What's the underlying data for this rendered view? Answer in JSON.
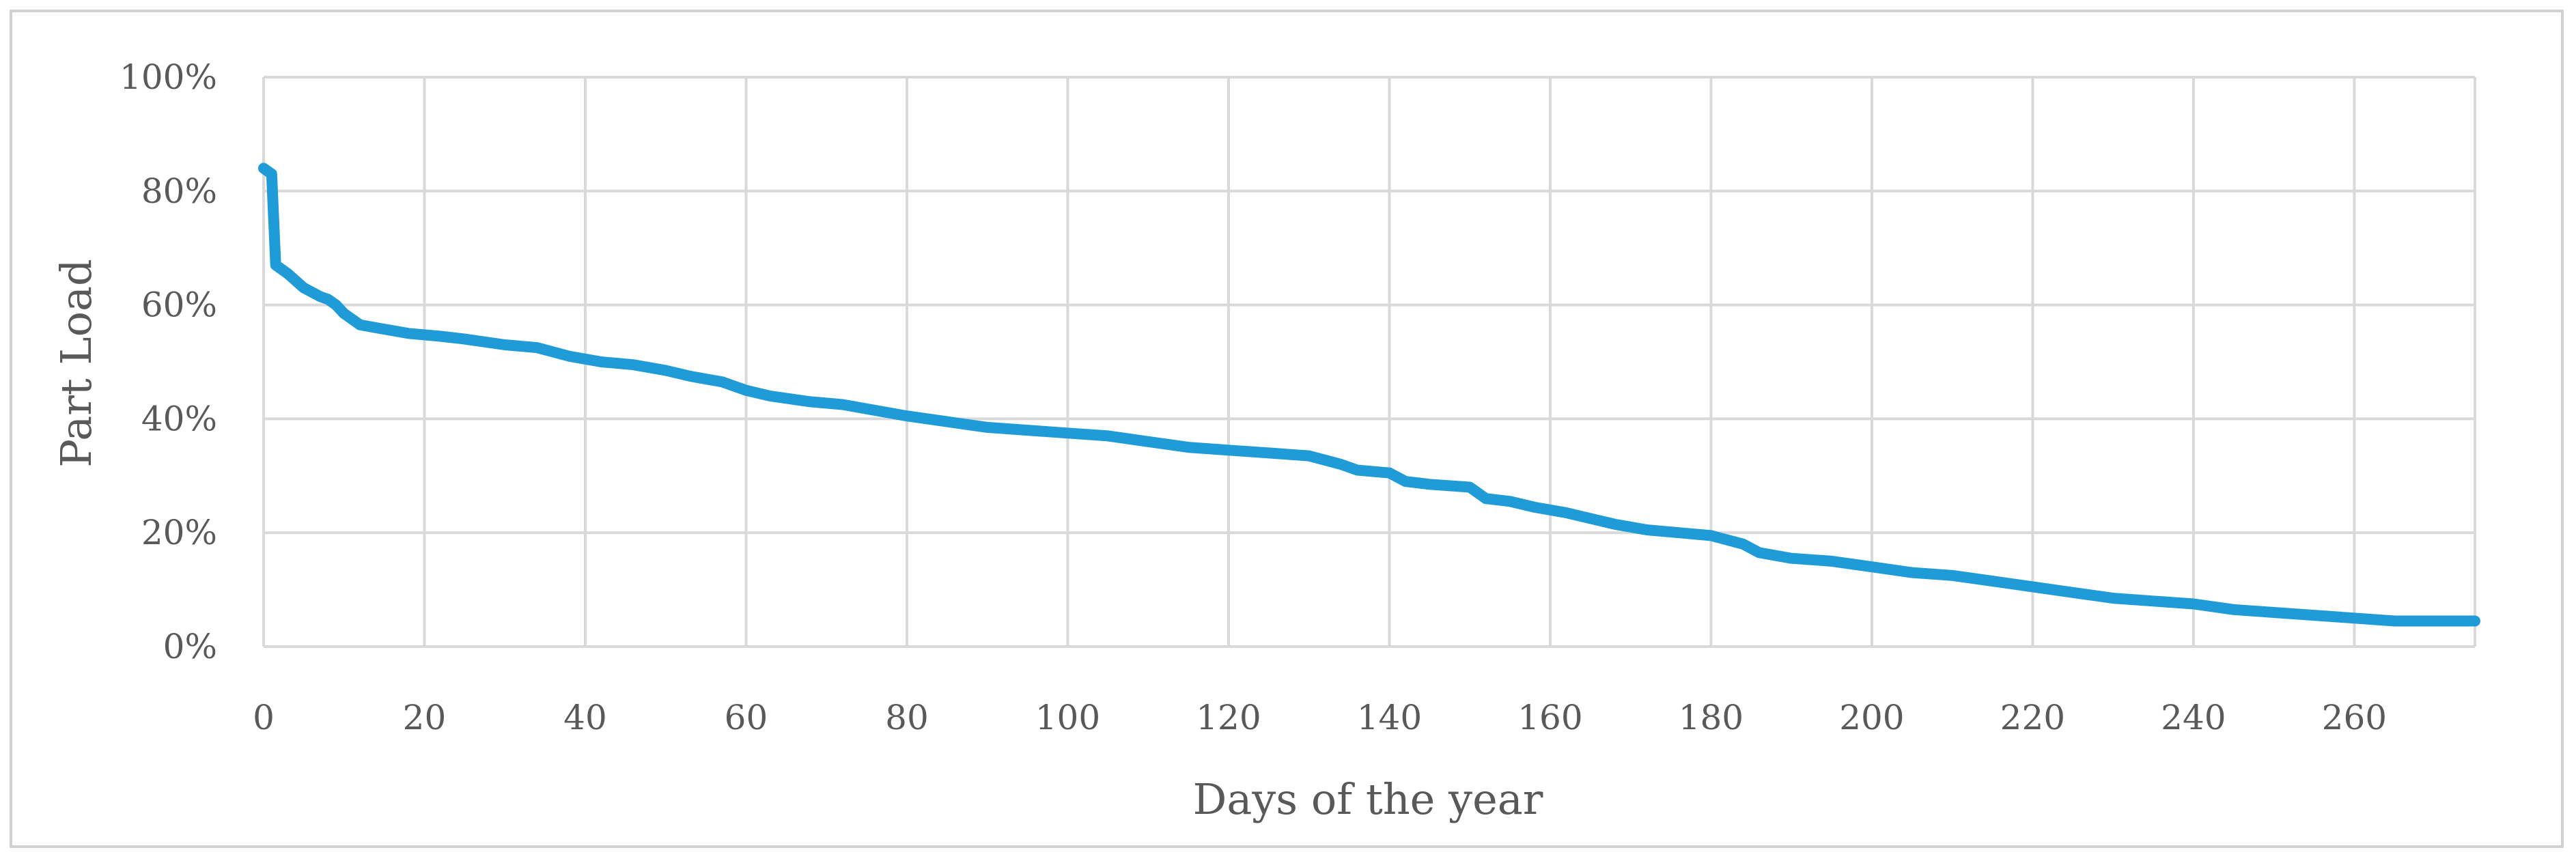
{
  "chart_data": {
    "type": "line",
    "title": "",
    "xlabel": "Days of the year",
    "ylabel": "Part Load",
    "xlim": [
      0,
      275
    ],
    "ylim": [
      0,
      100
    ],
    "x_ticks": [
      0,
      20,
      40,
      60,
      80,
      100,
      120,
      140,
      160,
      180,
      200,
      220,
      240,
      260
    ],
    "y_ticks": [
      0,
      20,
      40,
      60,
      80,
      100
    ],
    "x_tick_labels": [
      "0",
      "20",
      "40",
      "60",
      "80",
      "100",
      "120",
      "140",
      "160",
      "180",
      "200",
      "220",
      "240",
      "260"
    ],
    "y_tick_labels": [
      "0%",
      "20%",
      "40%",
      "60%",
      "80%",
      "100%"
    ],
    "grid": true,
    "legend": "none",
    "series": [
      {
        "color": "#1f9bd7",
        "x": [
          0,
          1,
          1.5,
          3,
          5,
          7,
          8,
          9,
          10,
          12,
          14,
          18,
          22,
          25,
          30,
          34,
          38,
          42,
          46,
          50,
          53,
          57,
          60,
          63,
          68,
          72,
          76,
          80,
          85,
          90,
          95,
          100,
          105,
          110,
          115,
          120,
          125,
          130,
          134,
          136,
          140,
          142,
          145,
          150,
          152,
          155,
          158,
          162,
          165,
          168,
          172,
          176,
          180,
          184,
          186,
          190,
          195,
          200,
          205,
          210,
          215,
          220,
          225,
          230,
          235,
          240,
          245,
          250,
          255,
          260,
          265,
          270,
          275
        ],
        "y": [
          84,
          83,
          67,
          65.5,
          63,
          61.5,
          61,
          60,
          58.5,
          56.5,
          56,
          55,
          54.5,
          54,
          53,
          52.5,
          51,
          50,
          49.5,
          48.5,
          47.5,
          46.5,
          45,
          44,
          43,
          42.5,
          41.5,
          40.5,
          39.5,
          38.5,
          38,
          37.5,
          37,
          36,
          35,
          34.5,
          34,
          33.5,
          32,
          31,
          30.5,
          29,
          28.5,
          28,
          26,
          25.5,
          24.5,
          23.5,
          22.5,
          21.5,
          20.5,
          20,
          19.5,
          18,
          16.5,
          15.5,
          15,
          14,
          13,
          12.5,
          11.5,
          10.5,
          9.5,
          8.5,
          8,
          7.5,
          6.5,
          6,
          5.5,
          5,
          4.5,
          4.5,
          4.5
        ]
      }
    ]
  }
}
